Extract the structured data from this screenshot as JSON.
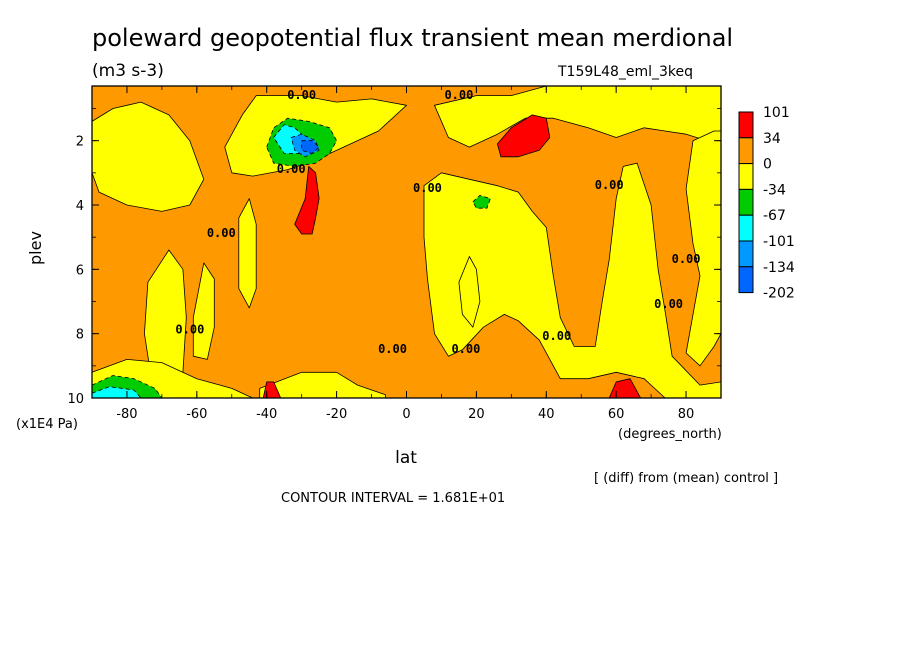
{
  "chart_data": {
    "type": "heatmap",
    "title": "poleward geopotential flux transient mean merdional",
    "units": "(m3 s-3)",
    "run_label": "T159L48_eml_3keq",
    "xlabel": "lat",
    "xunits": "(degrees_north)",
    "ylabel": "plev",
    "yunits": "(x1E4 Pa)",
    "xlim": [
      -90,
      90
    ],
    "ylim": [
      10,
      0.3
    ],
    "x_ticks": [
      -80,
      -60,
      -40,
      -20,
      0,
      20,
      40,
      60,
      80
    ],
    "y_ticks": [
      2,
      4,
      6,
      8,
      10
    ],
    "contour_interval_text": "CONTOUR INTERVAL = 1.681E+01",
    "comparison_note": "[ (diff) from (mean) control ]",
    "contour_zero_label": "0.00",
    "legend": {
      "levels": [
        "101",
        "34",
        "0",
        "-34",
        "-67",
        "-101",
        "-134",
        "-202"
      ],
      "colors": [
        "#ff0000",
        "#ff9900",
        "#ffff00",
        "#00cc00",
        "#00ffff",
        "#0099ff",
        "#0066ff"
      ]
    },
    "regions": [
      {
        "level": "negative",
        "color": "#ffff00",
        "polygon": [
          [
            -90,
            1.4
          ],
          [
            -84,
            1.0
          ],
          [
            -76,
            0.8
          ],
          [
            -68,
            1.2
          ],
          [
            -62,
            2.0
          ],
          [
            -58,
            3.2
          ],
          [
            -62,
            4.0
          ],
          [
            -70,
            4.2
          ],
          [
            -80,
            4.0
          ],
          [
            -88,
            3.6
          ],
          [
            -90,
            3.0
          ]
        ]
      },
      {
        "level": "negative",
        "color": "#ffff00",
        "polygon": [
          [
            -74,
            6.4
          ],
          [
            -68,
            5.4
          ],
          [
            -64,
            6.0
          ],
          [
            -63,
            7.5
          ],
          [
            -64,
            9.2
          ],
          [
            -68,
            9.6
          ],
          [
            -73,
            9.4
          ],
          [
            -75,
            8.0
          ]
        ]
      },
      {
        "level": "negative",
        "color": "#ffff00",
        "polygon": [
          [
            -61,
            7.5
          ],
          [
            -58,
            5.8
          ],
          [
            -55,
            6.3
          ],
          [
            -55,
            7.8
          ],
          [
            -57,
            8.8
          ],
          [
            -61,
            8.7
          ]
        ]
      },
      {
        "level": "negative",
        "color": "#ffff00",
        "polygon": [
          [
            -52,
            2.2
          ],
          [
            -47,
            1.2
          ],
          [
            -43,
            0.6
          ],
          [
            -30,
            0.6
          ],
          [
            -20,
            0.8
          ],
          [
            -10,
            0.7
          ],
          [
            0,
            0.9
          ],
          [
            -8,
            1.7
          ],
          [
            -16,
            2.1
          ],
          [
            -26,
            2.6
          ],
          [
            -34,
            2.9
          ],
          [
            -44,
            3.1
          ],
          [
            -50,
            3.0
          ]
        ]
      },
      {
        "level": "negative",
        "color": "#ffff00",
        "polygon": [
          [
            -48,
            4.4
          ],
          [
            -45,
            3.8
          ],
          [
            -43,
            4.6
          ],
          [
            -43,
            6.6
          ],
          [
            -45,
            7.2
          ],
          [
            -48,
            6.6
          ]
        ]
      },
      {
        "level": "negative",
        "color": "#ffff00",
        "polygon": [
          [
            -90,
            9.2
          ],
          [
            -80,
            8.8
          ],
          [
            -70,
            8.9
          ],
          [
            -60,
            9.4
          ],
          [
            -50,
            9.7
          ],
          [
            -44,
            10
          ],
          [
            -90,
            10
          ]
        ]
      },
      {
        "level": "negative",
        "color": "#ffff00",
        "polygon": [
          [
            -42,
            9.7
          ],
          [
            -30,
            9.2
          ],
          [
            -20,
            9.2
          ],
          [
            -14,
            9.6
          ],
          [
            -6,
            9.9
          ],
          [
            -6,
            10
          ],
          [
            -42,
            10
          ]
        ]
      },
      {
        "level": "negative",
        "color": "#ffff00",
        "polygon": [
          [
            8,
            0.9
          ],
          [
            20,
            0.6
          ],
          [
            30,
            0.6
          ],
          [
            40,
            0.3
          ],
          [
            70,
            0.3
          ],
          [
            90,
            0.3
          ],
          [
            90,
            2.2
          ],
          [
            86,
            2.0
          ],
          [
            80,
            1.8
          ],
          [
            74,
            1.7
          ],
          [
            68,
            1.6
          ],
          [
            60,
            1.9
          ],
          [
            52,
            1.6
          ],
          [
            42,
            1.3
          ],
          [
            34,
            1.3
          ],
          [
            26,
            1.8
          ],
          [
            18,
            2.2
          ],
          [
            12,
            1.9
          ]
        ]
      },
      {
        "level": "negative",
        "color": "#ffff00",
        "polygon": [
          [
            5,
            3.4
          ],
          [
            10,
            3.0
          ],
          [
            18,
            3.2
          ],
          [
            26,
            3.4
          ],
          [
            32,
            3.6
          ],
          [
            36,
            4.2
          ],
          [
            40,
            4.7
          ],
          [
            42,
            6.2
          ],
          [
            44,
            7.5
          ],
          [
            48,
            8.4
          ],
          [
            54,
            8.4
          ],
          [
            56,
            7.0
          ],
          [
            58,
            5.7
          ],
          [
            60,
            3.8
          ],
          [
            62,
            2.8
          ],
          [
            66,
            2.7
          ],
          [
            70,
            4.0
          ],
          [
            72,
            6.0
          ],
          [
            74,
            7.3
          ],
          [
            76,
            8.7
          ],
          [
            84,
            9.6
          ],
          [
            90,
            9.5
          ],
          [
            90,
            10
          ],
          [
            74,
            10
          ],
          [
            68,
            9.4
          ],
          [
            60,
            9.2
          ],
          [
            52,
            9.4
          ],
          [
            44,
            9.4
          ],
          [
            38,
            8.2
          ],
          [
            32,
            7.6
          ],
          [
            28,
            7.4
          ],
          [
            22,
            7.8
          ],
          [
            16,
            8.5
          ],
          [
            12,
            8.7
          ],
          [
            8,
            8.0
          ],
          [
            6,
            6.3
          ],
          [
            5,
            5.0
          ]
        ]
      },
      {
        "level": "negative",
        "color": "#ffff00",
        "polygon": [
          [
            15,
            6.4
          ],
          [
            18,
            5.6
          ],
          [
            20,
            6.0
          ],
          [
            21,
            7.0
          ],
          [
            19,
            7.8
          ],
          [
            16,
            7.4
          ]
        ]
      },
      {
        "level": "negative",
        "color": "#ffff00",
        "polygon": [
          [
            88,
            1.7
          ],
          [
            82,
            2.0
          ],
          [
            80,
            3.5
          ],
          [
            82,
            5.2
          ],
          [
            84,
            6.2
          ],
          [
            82,
            7.4
          ],
          [
            80,
            8.6
          ],
          [
            84,
            9.0
          ],
          [
            88,
            8.4
          ],
          [
            90,
            8.0
          ],
          [
            90,
            1.7
          ]
        ]
      },
      {
        "level": "101",
        "color": "#ff0000",
        "polygon": [
          [
            -32,
            4.6
          ],
          [
            -29,
            3.8
          ],
          [
            -28,
            2.8
          ],
          [
            -26,
            3.0
          ],
          [
            -25,
            3.8
          ],
          [
            -26,
            4.4
          ],
          [
            -27,
            4.9
          ],
          [
            -30,
            4.9
          ]
        ]
      },
      {
        "level": "101",
        "color": "#ff0000",
        "polygon": [
          [
            26,
            2.1
          ],
          [
            30,
            1.6
          ],
          [
            36,
            1.2
          ],
          [
            40,
            1.3
          ],
          [
            41,
            1.9
          ],
          [
            38,
            2.3
          ],
          [
            32,
            2.5
          ],
          [
            27,
            2.5
          ]
        ]
      },
      {
        "level": "101",
        "color": "#ff0000",
        "polygon": [
          [
            -41,
            10
          ],
          [
            -40,
            9.5
          ],
          [
            -38,
            9.5
          ],
          [
            -36,
            10
          ]
        ]
      },
      {
        "level": "101",
        "color": "#ff0000",
        "polygon": [
          [
            58,
            10
          ],
          [
            60,
            9.5
          ],
          [
            64,
            9.4
          ],
          [
            67,
            10
          ]
        ]
      },
      {
        "level": "-34",
        "color": "#00cc00",
        "polygon": [
          [
            -40,
            2.2
          ],
          [
            -38,
            1.6
          ],
          [
            -34,
            1.3
          ],
          [
            -28,
            1.4
          ],
          [
            -22,
            1.6
          ],
          [
            -20,
            2.0
          ],
          [
            -22,
            2.4
          ],
          [
            -26,
            2.7
          ],
          [
            -32,
            2.8
          ],
          [
            -38,
            2.7
          ]
        ]
      },
      {
        "level": "-67",
        "color": "#00ffff",
        "polygon": [
          [
            -38,
            1.9
          ],
          [
            -35,
            1.5
          ],
          [
            -32,
            1.6
          ],
          [
            -28,
            2.0
          ],
          [
            -30,
            2.4
          ],
          [
            -35,
            2.4
          ]
        ]
      },
      {
        "level": "-101",
        "color": "#0099ff",
        "polygon": [
          [
            -33,
            1.9
          ],
          [
            -30,
            1.8
          ],
          [
            -26,
            2.0
          ],
          [
            -25,
            2.3
          ],
          [
            -29,
            2.5
          ],
          [
            -32,
            2.3
          ]
        ]
      },
      {
        "level": "-134",
        "color": "#0066ff",
        "polygon": [
          [
            -30,
            2.0
          ],
          [
            -27,
            2.0
          ],
          [
            -25,
            2.2
          ],
          [
            -27,
            2.4
          ],
          [
            -30,
            2.3
          ]
        ]
      },
      {
        "level": "-34",
        "color": "#00cc00",
        "polygon": [
          [
            -90,
            9.6
          ],
          [
            -84,
            9.3
          ],
          [
            -78,
            9.4
          ],
          [
            -72,
            9.7
          ],
          [
            -70,
            10
          ],
          [
            -90,
            10
          ]
        ]
      },
      {
        "level": "-67",
        "color": "#00ffff",
        "polygon": [
          [
            -90,
            9.85
          ],
          [
            -85,
            9.65
          ],
          [
            -78,
            9.75
          ],
          [
            -76,
            10
          ],
          [
            -90,
            10
          ]
        ]
      },
      {
        "level": "-34",
        "color": "#00cc00",
        "polygon": [
          [
            19,
            3.9
          ],
          [
            21,
            3.7
          ],
          [
            24,
            3.8
          ],
          [
            23,
            4.1
          ],
          [
            20,
            4.1
          ]
        ]
      }
    ],
    "zero_contour_labels": [
      {
        "x": -30,
        "y": 0.7
      },
      {
        "x": 15,
        "y": 0.7
      },
      {
        "x": -33,
        "y": 3.0
      },
      {
        "x": 6,
        "y": 3.6
      },
      {
        "x": 58,
        "y": 3.5
      },
      {
        "x": -53,
        "y": 5.0
      },
      {
        "x": 80,
        "y": 5.8
      },
      {
        "x": 75,
        "y": 7.2
      },
      {
        "x": -62,
        "y": 8.0
      },
      {
        "x": 17,
        "y": 8.6
      },
      {
        "x": 43,
        "y": 8.2
      },
      {
        "x": -4,
        "y": 8.6
      }
    ]
  }
}
